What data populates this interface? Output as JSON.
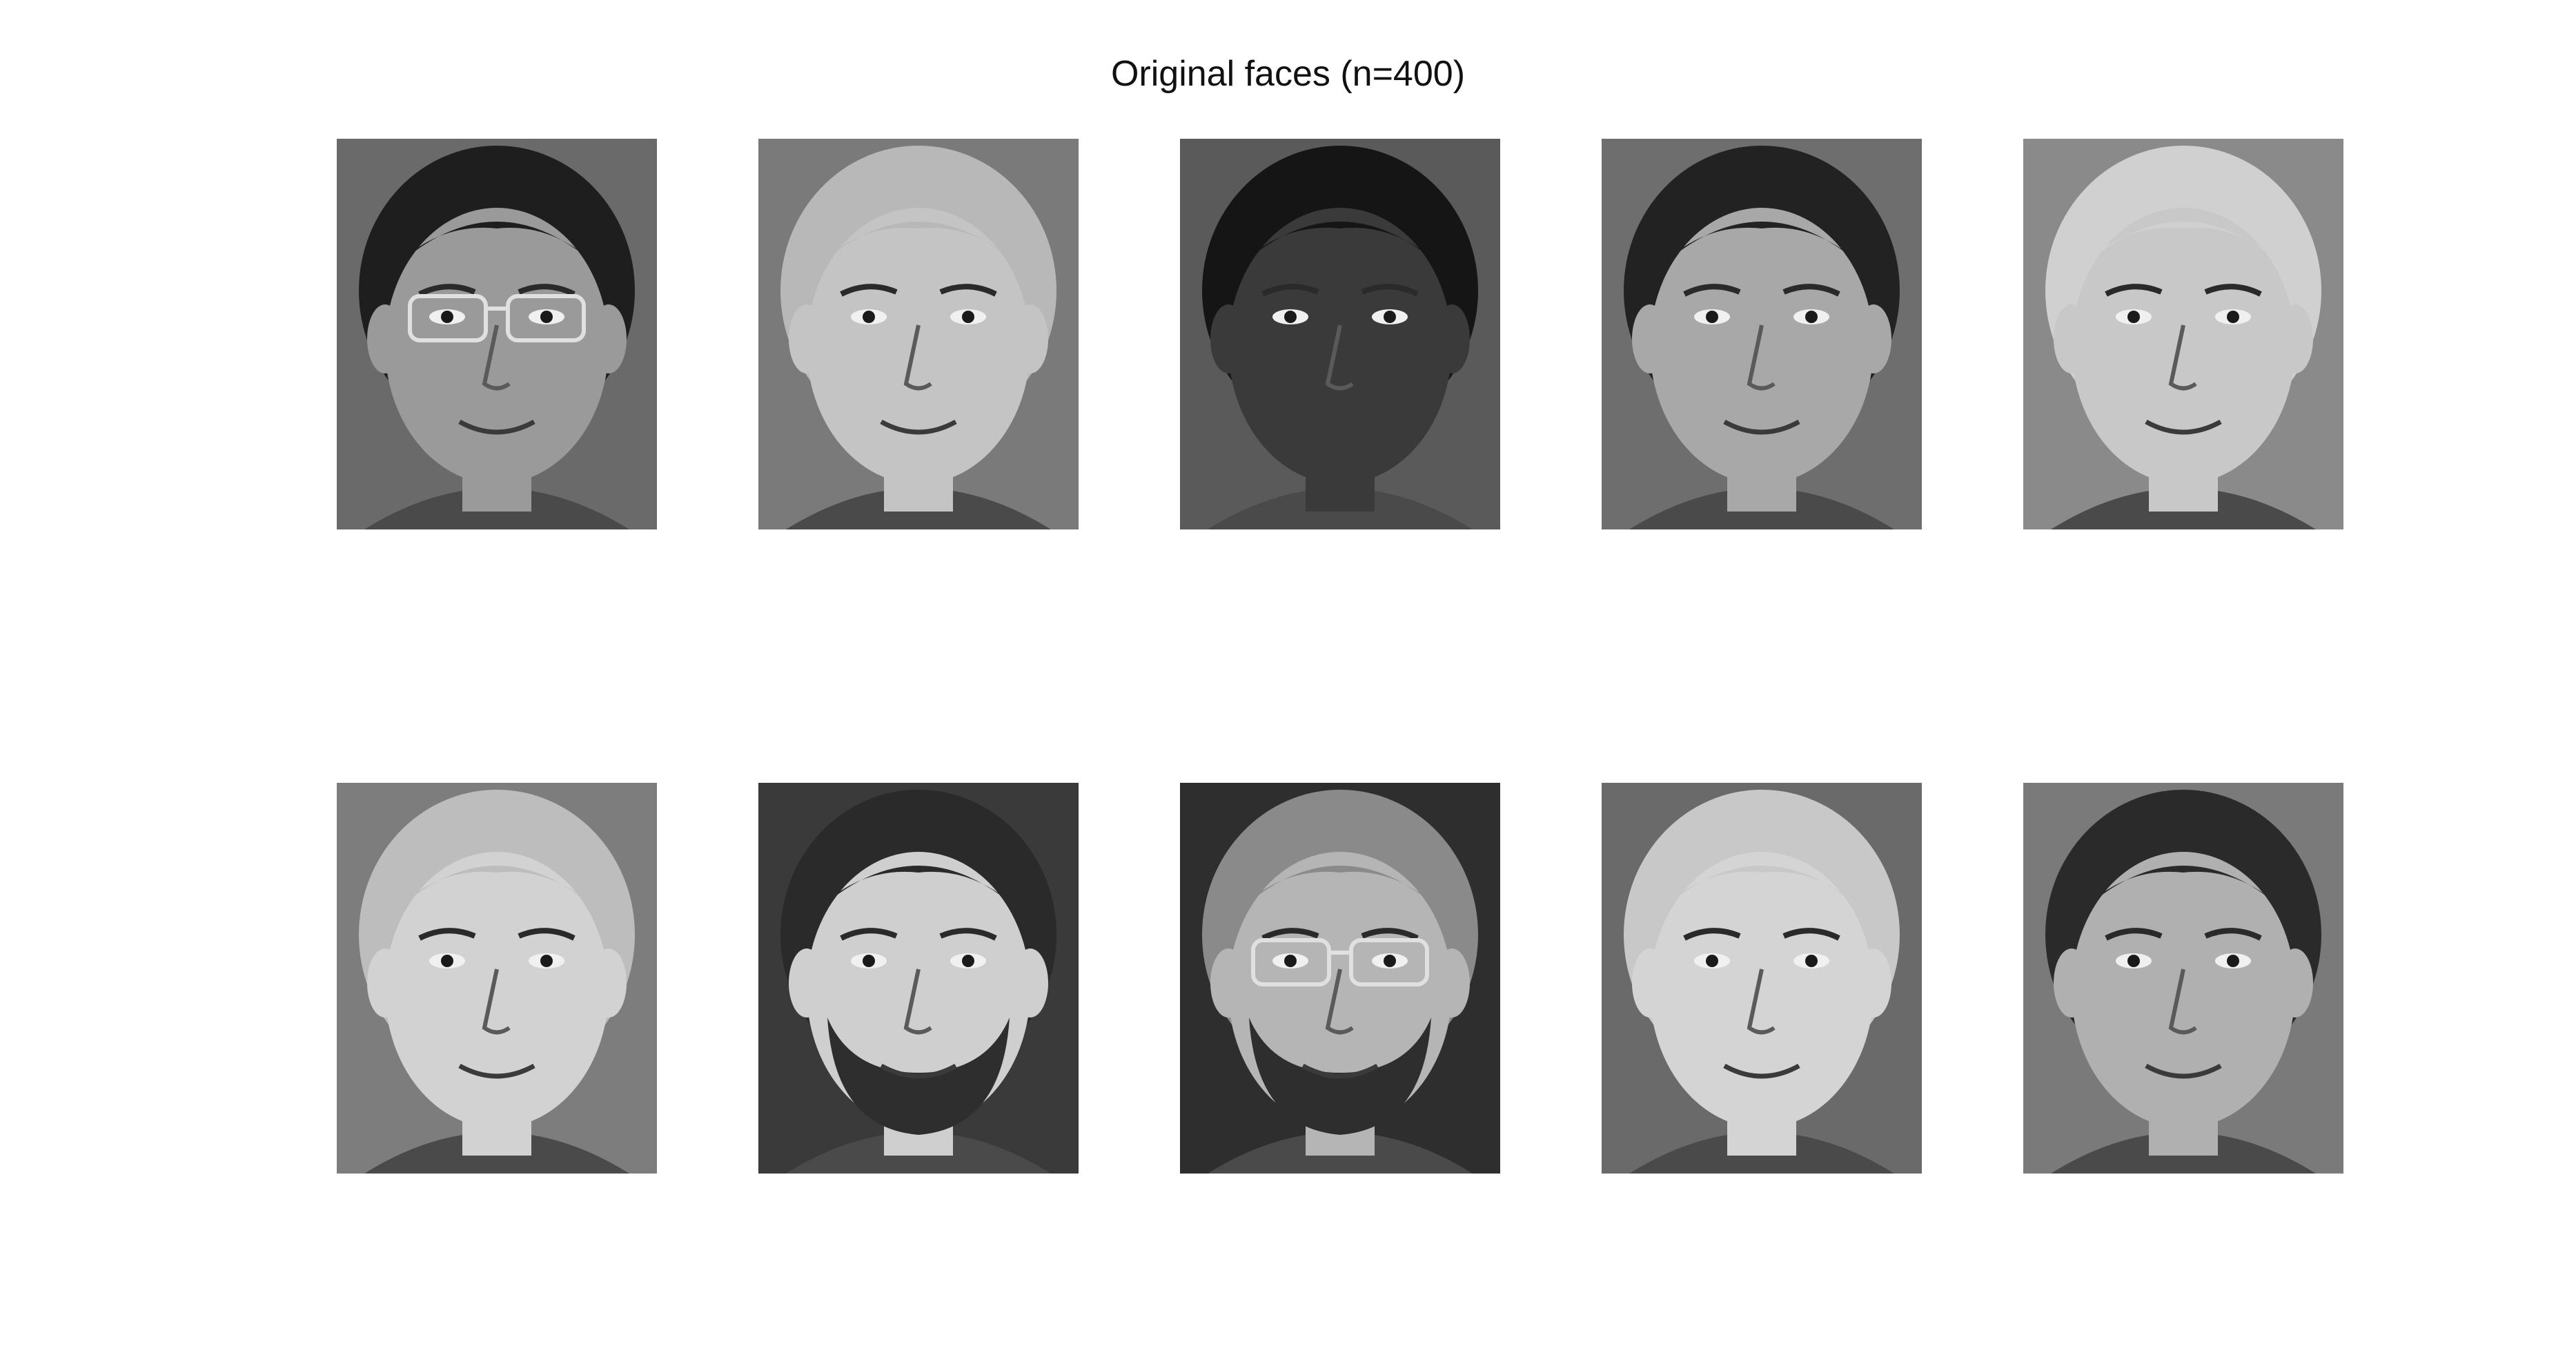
{
  "figure": {
    "title": "Original faces (n=400)"
  },
  "faces": [
    {
      "description_icon": "face-photo-icon",
      "tone": "#6a6a6a",
      "hair": "#1e1e1e",
      "skin": "#9a9a9a",
      "glasses": true,
      "beard": false
    },
    {
      "description_icon": "face-photo-icon",
      "tone": "#7a7a7a",
      "hair": "#b8b8b8",
      "skin": "#c4c4c4",
      "glasses": false,
      "beard": false
    },
    {
      "description_icon": "face-photo-icon",
      "tone": "#5a5a5a",
      "hair": "#151515",
      "skin": "#3a3a3a",
      "glasses": false,
      "beard": false
    },
    {
      "description_icon": "face-photo-icon",
      "tone": "#6e6e6e",
      "hair": "#222222",
      "skin": "#a8a8a8",
      "glasses": false,
      "beard": false
    },
    {
      "description_icon": "face-photo-icon",
      "tone": "#8a8a8a",
      "hair": "#d0d0d0",
      "skin": "#c8c8c8",
      "glasses": false,
      "beard": false
    },
    {
      "description_icon": "face-photo-icon",
      "tone": "#7d7d7d",
      "hair": "#bdbdbd",
      "skin": "#d2d2d2",
      "glasses": false,
      "beard": false
    },
    {
      "description_icon": "face-photo-icon",
      "tone": "#3a3a3a",
      "hair": "#2a2a2a",
      "skin": "#cfcfcf",
      "glasses": false,
      "beard": true
    },
    {
      "description_icon": "face-photo-icon",
      "tone": "#2e2e2e",
      "hair": "#8a8a8a",
      "skin": "#b5b5b5",
      "glasses": true,
      "beard": true
    },
    {
      "description_icon": "face-photo-icon",
      "tone": "#6a6a6a",
      "hair": "#c8c8c8",
      "skin": "#d4d4d4",
      "glasses": false,
      "beard": false
    },
    {
      "description_icon": "face-photo-icon",
      "tone": "#7a7a7a",
      "hair": "#2a2a2a",
      "skin": "#b0b0b0",
      "glasses": false,
      "beard": false
    }
  ]
}
